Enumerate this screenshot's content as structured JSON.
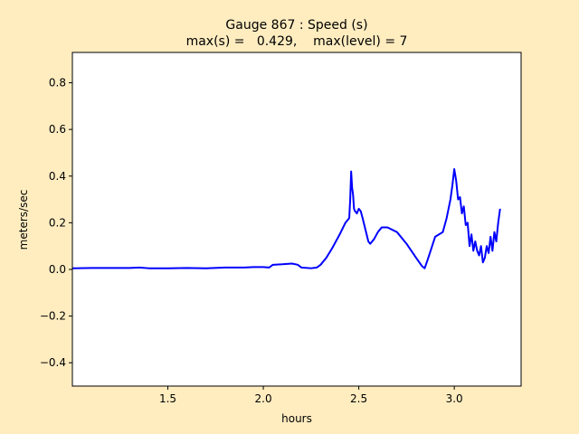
{
  "chart_data": {
    "type": "line",
    "title_line1": "Gauge 867 : Speed (s)",
    "title_line2": "max(s) =   0.429,    max(level) = 7",
    "xlabel": "hours",
    "ylabel": "meters/sec",
    "xlim": [
      1.0,
      3.35
    ],
    "ylim": [
      -0.5,
      0.93
    ],
    "xticks": [
      1.5,
      2.0,
      2.5,
      3.0
    ],
    "xtick_labels": [
      "1.5",
      "2.0",
      "2.5",
      "3.0"
    ],
    "yticks": [
      -0.4,
      -0.2,
      0.0,
      0.2,
      0.4,
      0.6,
      0.8
    ],
    "ytick_labels": [
      "−0.4",
      "−0.2",
      "0.0",
      "0.2",
      "0.4",
      "0.6",
      "0.8"
    ],
    "grid": false,
    "series": [
      {
        "color": "#0000ff",
        "x": [
          1.0,
          1.1,
          1.2,
          1.3,
          1.35,
          1.4,
          1.5,
          1.6,
          1.7,
          1.8,
          1.9,
          1.95,
          2.0,
          2.03,
          2.05,
          2.1,
          2.15,
          2.18,
          2.2,
          2.25,
          2.28,
          2.3,
          2.33,
          2.36,
          2.4,
          2.43,
          2.45,
          2.455,
          2.46,
          2.465,
          2.47,
          2.475,
          2.48,
          2.49,
          2.5,
          2.51,
          2.52,
          2.55,
          2.56,
          2.58,
          2.6,
          2.62,
          2.65,
          2.7,
          2.75,
          2.8,
          2.83,
          2.845,
          2.86,
          2.88,
          2.9,
          2.92,
          2.94,
          2.96,
          2.98,
          2.99,
          3.0,
          3.01,
          3.02,
          3.03,
          3.04,
          3.05,
          3.06,
          3.07,
          3.08,
          3.09,
          3.1,
          3.11,
          3.12,
          3.13,
          3.14,
          3.15,
          3.16,
          3.17,
          3.18,
          3.19,
          3.2,
          3.21,
          3.22,
          3.23,
          3.24
        ],
        "y": [
          0.005,
          0.006,
          0.006,
          0.006,
          0.008,
          0.005,
          0.005,
          0.006,
          0.005,
          0.008,
          0.008,
          0.01,
          0.01,
          0.008,
          0.02,
          0.022,
          0.025,
          0.02,
          0.008,
          0.005,
          0.008,
          0.02,
          0.05,
          0.09,
          0.15,
          0.2,
          0.22,
          0.3,
          0.42,
          0.35,
          0.32,
          0.26,
          0.25,
          0.24,
          0.26,
          0.25,
          0.22,
          0.12,
          0.11,
          0.13,
          0.16,
          0.18,
          0.18,
          0.16,
          0.11,
          0.05,
          0.015,
          0.005,
          0.04,
          0.09,
          0.14,
          0.15,
          0.16,
          0.22,
          0.3,
          0.36,
          0.43,
          0.38,
          0.3,
          0.31,
          0.24,
          0.27,
          0.19,
          0.2,
          0.1,
          0.15,
          0.08,
          0.12,
          0.08,
          0.06,
          0.1,
          0.03,
          0.05,
          0.1,
          0.07,
          0.14,
          0.08,
          0.16,
          0.12,
          0.2,
          0.26
        ]
      }
    ]
  }
}
